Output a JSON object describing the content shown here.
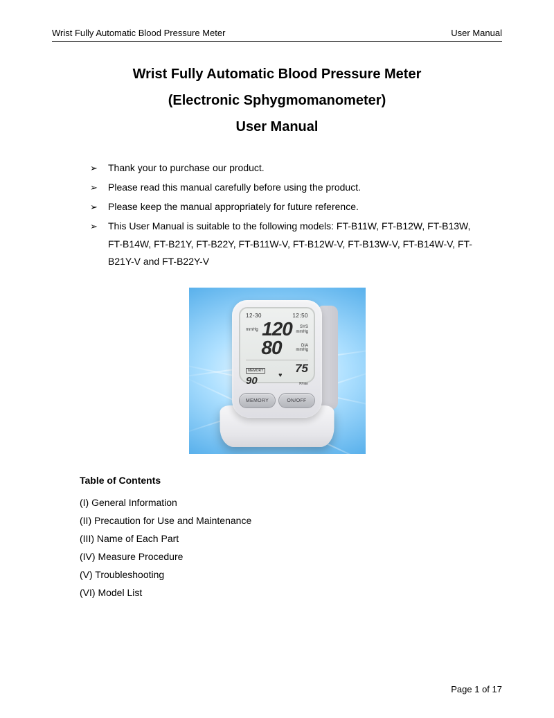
{
  "header": {
    "left": "Wrist Fully Automatic Blood Pressure Meter",
    "right": "User Manual"
  },
  "title": {
    "line1": "Wrist Fully Automatic Blood Pressure Meter",
    "line2": "(Electronic Sphygmomanometer)",
    "line3": "User Manual"
  },
  "bullets": [
    "Thank your to purchase our product.",
    "Please read this manual carefully before using the product.",
    "Please keep the manual appropriately for future reference.",
    "This User Manual is suitable to the following models: FT-B11W, FT-B12W, FT-B13W, FT-B14W, FT-B21Y, FT-B22Y, FT-B11W-V, FT-B12W-V, FT-B13W-V, FT-B14W-V, FT-B21Y-V and FT-B22Y-V"
  ],
  "device": {
    "date": "12-30",
    "time": "12:50",
    "sys_value": "120",
    "sys_label": "SYS",
    "sys_unit": "mmHg",
    "dia_value": "80",
    "dia_label": "DIA",
    "dia_unit": "mmHg",
    "unit_left": "mmHg",
    "memory_label": "MEMORY",
    "memory_value": "90",
    "heart": "♥",
    "pulse_value": "75",
    "pulse_label": "P/min",
    "btn_memory": "MEMORY",
    "btn_onoff": "ON/OFF",
    "colors": {
      "bg_gradient_inner": "#aee0ff",
      "bg_gradient_outer": "#2a7ecf",
      "body": "#e9e9ed",
      "lcd": "#e2e5e3",
      "text": "#2b2b2b"
    }
  },
  "toc": {
    "heading": "Table of Contents",
    "items": [
      "(I) General Information",
      "(II) Precaution for Use and Maintenance",
      "(III) Name of Each Part",
      "(IV) Measure Procedure",
      "(V) Troubleshooting",
      "(VI) Model List"
    ]
  },
  "footer": {
    "text": "Page  1  of  17"
  }
}
